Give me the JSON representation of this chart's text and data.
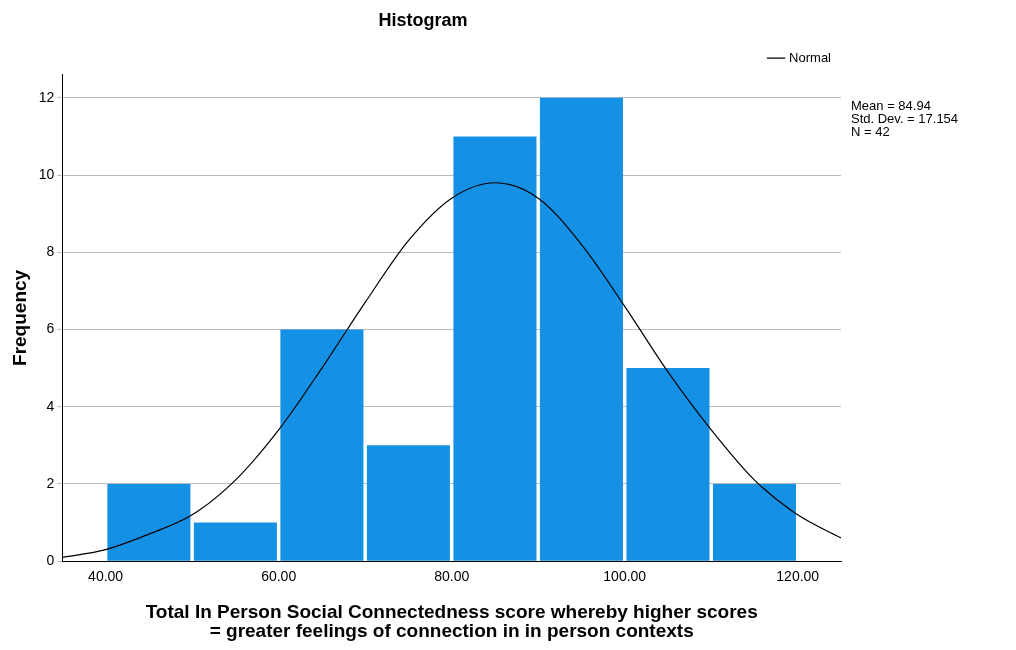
{
  "chart_data": {
    "type": "histogram",
    "title": "Histogram",
    "xlabel": "Total In Person Social Connectedness score whereby higher scores\n= greater feelings of connection in in person contexts",
    "ylabel": "Frequency",
    "bins": [
      40,
      50,
      60,
      70,
      80,
      90,
      100,
      110,
      120
    ],
    "series": [
      {
        "color": "#1490e5",
        "values": [
          2,
          1,
          6,
          3,
          11,
          12,
          5,
          2
        ]
      },
      {
        "name": "Normal",
        "type": "line",
        "color": "#000000",
        "x": [
          35,
          40,
          45,
          50,
          55,
          60,
          65,
          70,
          75,
          80,
          85,
          90,
          95,
          100,
          105,
          110,
          115,
          120,
          125
        ],
        "values": [
          0.1,
          0.3,
          0.7,
          1.2,
          2.1,
          3.4,
          5,
          6.7,
          8.3,
          9.4,
          9.8,
          9.4,
          8.2,
          6.6,
          4.9,
          3.4,
          2.1,
          1.2,
          0.6
        ]
      }
    ],
    "xlim": [
      35,
      125
    ],
    "xticks": [
      {
        "value": 40,
        "label": "40.00"
      },
      {
        "value": 60,
        "label": "60.00"
      },
      {
        "value": 80,
        "label": "80.00"
      },
      {
        "value": 100,
        "label": "100.00"
      },
      {
        "value": 120,
        "label": "120.00"
      }
    ],
    "ylim": [
      0,
      12.6
    ],
    "yticks": [
      0,
      2,
      4,
      6,
      8,
      10,
      12
    ],
    "grid": "y",
    "legend": "top right",
    "marker": "none",
    "line_style": "solid",
    "annotations": [
      "Mean = 84.94",
      "Std. Dev. = 17.154",
      "N = 42"
    ]
  }
}
